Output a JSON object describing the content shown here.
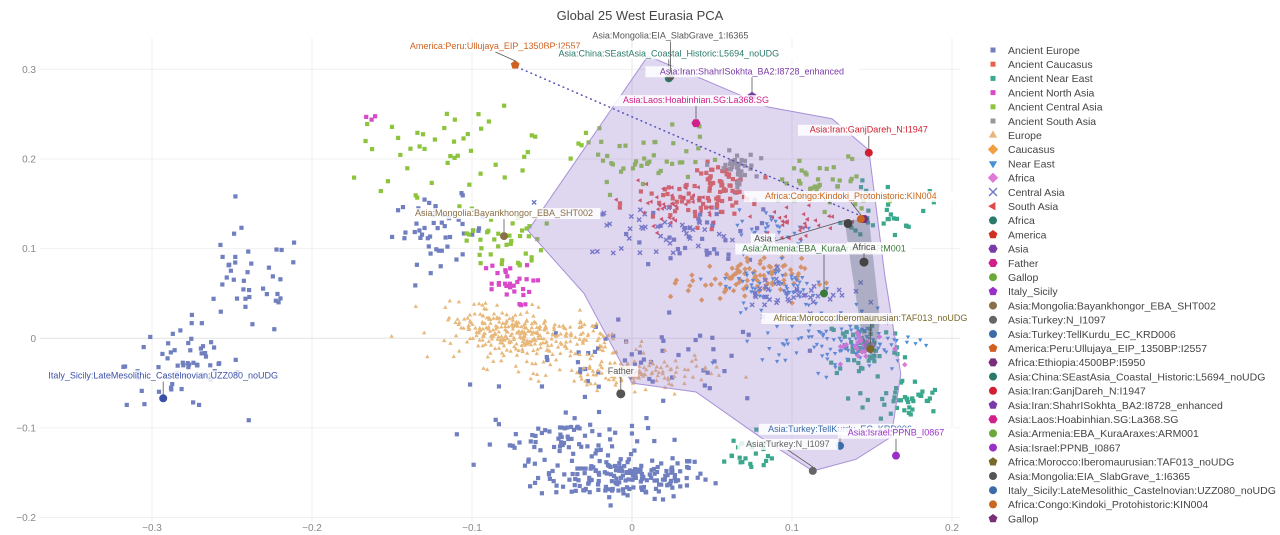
{
  "chart_data": {
    "type": "scatter",
    "title": "Global 25 West Eurasia PCA",
    "xlabel": "",
    "ylabel": "",
    "xlim": [
      -0.37,
      0.205
    ],
    "ylim": [
      -0.205,
      0.335
    ],
    "x_ticks": [
      -0.3,
      -0.2,
      -0.1,
      0,
      0.1,
      0.2
    ],
    "y_ticks": [
      -0.2,
      -0.1,
      0,
      0.1,
      0.2,
      0.3
    ],
    "x_tick_labels": [
      "−0.3",
      "−0.2",
      "−0.1",
      "0",
      "0.1",
      "0.2"
    ],
    "y_tick_labels": [
      "−0.2",
      "−0.1",
      "0",
      "0.1",
      "0.2",
      "0.3"
    ],
    "grid": true,
    "legend_position": "right",
    "sample_series": [
      {
        "name": "Ancient Europe",
        "symbol": "square",
        "color": "#6f7fbf",
        "clusters": [
          [
            -0.005,
            -0.155,
            0.045,
            0.02,
            180
          ],
          [
            -0.04,
            -0.11,
            0.04,
            0.02,
            70
          ],
          [
            -0.12,
            0.12,
            0.025,
            0.03,
            50
          ],
          [
            -0.28,
            -0.03,
            0.03,
            0.04,
            60
          ],
          [
            -0.24,
            0.06,
            0.03,
            0.05,
            40
          ],
          [
            0.01,
            -0.03,
            0.07,
            0.04,
            60
          ],
          [
            0.05,
            0.12,
            0.04,
            0.03,
            40
          ]
        ]
      },
      {
        "name": "Ancient Caucasus",
        "symbol": "square",
        "color": "#e8604c",
        "clusters": [
          [
            0.055,
            0.17,
            0.015,
            0.02,
            60
          ],
          [
            0.03,
            0.15,
            0.03,
            0.02,
            40
          ]
        ]
      },
      {
        "name": "Ancient Near East",
        "symbol": "square",
        "color": "#3aa88c",
        "clusters": [
          [
            0.145,
            -0.01,
            0.02,
            0.03,
            60
          ],
          [
            0.17,
            -0.07,
            0.02,
            0.02,
            40
          ],
          [
            0.16,
            0.15,
            0.02,
            0.03,
            30
          ],
          [
            0.07,
            -0.13,
            0.02,
            0.02,
            25
          ]
        ]
      },
      {
        "name": "Ancient North Asia",
        "symbol": "square",
        "color": "#d84ac9",
        "clusters": [
          [
            -0.08,
            0.06,
            0.015,
            0.02,
            30
          ],
          [
            -0.165,
            0.245,
            0.004,
            0.004,
            3
          ]
        ]
      },
      {
        "name": "Ancient Central Asia",
        "symbol": "square",
        "color": "#8cc43c",
        "clusters": [
          [
            -0.08,
            0.11,
            0.02,
            0.03,
            40
          ],
          [
            0.0,
            0.2,
            0.05,
            0.03,
            50
          ],
          [
            0.12,
            0.17,
            0.03,
            0.03,
            40
          ],
          [
            -0.12,
            0.21,
            0.04,
            0.04,
            40
          ]
        ]
      },
      {
        "name": "Ancient South Asia",
        "symbol": "square",
        "color": "#9a9a9a",
        "clusters": [
          [
            0.065,
            0.19,
            0.01,
            0.015,
            40
          ]
        ]
      },
      {
        "name": "Europe",
        "symbol": "triangle-up",
        "color": "#e8b87a",
        "clusters": [
          [
            -0.06,
            0.0,
            0.04,
            0.02,
            260
          ],
          [
            0.0,
            -0.04,
            0.04,
            0.015,
            140
          ],
          [
            -0.09,
            0.02,
            0.025,
            0.02,
            80
          ]
        ]
      },
      {
        "name": "Caucasus",
        "symbol": "diamond",
        "color": "#f0a040",
        "clusters": [
          [
            0.07,
            0.065,
            0.03,
            0.02,
            90
          ]
        ]
      },
      {
        "name": "Near East",
        "symbol": "triangle-down",
        "color": "#4a90d8",
        "clusters": [
          [
            0.13,
            0.0,
            0.04,
            0.03,
            110
          ],
          [
            0.09,
            0.06,
            0.03,
            0.02,
            60
          ],
          [
            0.09,
            0.12,
            0.02,
            0.02,
            30
          ]
        ]
      },
      {
        "name": "Africa",
        "symbol": "diamond",
        "color": "#e07ad8",
        "clusters": [
          [
            0.145,
            -0.01,
            0.015,
            0.015,
            25
          ]
        ]
      },
      {
        "name": "Central Asia",
        "symbol": "x",
        "color": "#6b78c8",
        "clusters": [
          [
            0.02,
            0.12,
            0.04,
            0.025,
            40
          ],
          [
            0.1,
            0.05,
            0.03,
            0.02,
            40
          ]
        ]
      },
      {
        "name": "South Asia",
        "symbol": "triangle-left",
        "color": "#e0484a",
        "clusters": [
          [
            0.025,
            0.15,
            0.025,
            0.02,
            40
          ],
          [
            0.1,
            0.13,
            0.03,
            0.02,
            30
          ]
        ]
      }
    ],
    "highlighted_samples": [
      {
        "label": "Asia:Mongolia:Bayankhongor_EBA_SHT002",
        "x": -0.08,
        "y": 0.114,
        "symbol": "circle",
        "color": "#8a7046",
        "label_dx": 0,
        "label_dy": -20
      },
      {
        "label": "Asia:Turkey:N_I1097",
        "x": 0.113,
        "y": -0.148,
        "symbol": "circle",
        "color": "#666666",
        "label_dx": -25,
        "label_dy": -24
      },
      {
        "label": "Asia:Turkey:TellKurdu_EC_KRD006",
        "x": 0.13,
        "y": -0.12,
        "symbol": "circle",
        "color": "#3a6ca8",
        "label_dx": 0,
        "label_dy": -14
      },
      {
        "label": "America:Peru:Ullujaya_EIP_1350BP:I2557",
        "x": -0.073,
        "y": 0.305,
        "symbol": "pentagon",
        "color": "#d06020",
        "label_dx": -20,
        "label_dy": -16
      },
      {
        "label": "Africa:Ethiopia:4500BP:I5950",
        "x": 0.145,
        "y": 0.133,
        "symbol": "hexagon",
        "color": "#7a2d7a",
        "label_dx": 0,
        "label_dy": 0
      },
      {
        "label": "Asia:China:SEastAsia_Coastal_Historic:L5694_noUDG",
        "x": 0.023,
        "y": 0.29,
        "symbol": "circle",
        "color": "#2a7a6a",
        "label_dx": 0,
        "label_dy": -22
      },
      {
        "label": "Asia:Iran:GanjDareh_N:I1947",
        "x": 0.148,
        "y": 0.207,
        "symbol": "circle",
        "color": "#d02030",
        "label_dx": 0,
        "label_dy": -20
      },
      {
        "label": "Asia:Iran:ShahrISokhta_BA2:I8728_enhanced",
        "x": 0.075,
        "y": 0.27,
        "symbol": "pentagon",
        "color": "#7a3aa8",
        "label_dx": 0,
        "label_dy": -22
      },
      {
        "label": "Asia:Laos:Hoabinhian.SG:La368.SG",
        "x": 0.04,
        "y": 0.24,
        "symbol": "hexagon",
        "color": "#d0208a",
        "label_dx": 0,
        "label_dy": -20
      },
      {
        "label": "Asia:Armenia:EBA_KuraAraxes:ARM001",
        "x": 0.12,
        "y": 0.05,
        "symbol": "circle",
        "color": "#3a7a3a",
        "label_dx": 0,
        "label_dy": -42
      },
      {
        "label": "Asia:Israel:PPNB_I0867",
        "x": 0.165,
        "y": -0.131,
        "symbol": "circle",
        "color": "#9a30c8",
        "label_dx": 0,
        "label_dy": -20
      },
      {
        "label": "Africa:Morocco:Iberomaurusian:TAF013_noUDG",
        "x": 0.149,
        "y": -0.012,
        "symbol": "circle",
        "color": "#7a6a2a",
        "label_dx": 0,
        "label_dy": -28
      },
      {
        "label": "Asia:Mongolia:EIA_SlabGrave_1:I6365",
        "x": 0.024,
        "y": 0.292,
        "symbol": "circle",
        "color": "#555555",
        "label_dx": 0,
        "label_dy": -38
      },
      {
        "label": "Italy_Sicily:LateMesolithic_Castelnovian:UZZ080_noUDG",
        "x": -0.293,
        "y": -0.067,
        "symbol": "circle",
        "color": "#3a50a8",
        "label_dx": 0,
        "label_dy": -20
      },
      {
        "label": "Africa:Congo:Kindoki_Protohistoric:KIN004",
        "x": 0.143,
        "y": 0.133,
        "symbol": "circle",
        "color": "#c86820",
        "label_dx": -10,
        "label_dy": -20
      }
    ],
    "centroids": [
      {
        "label": "Father",
        "x": -0.007,
        "y": -0.062,
        "symbol": "circle",
        "color": "#555555",
        "label_dx": 0,
        "label_dy": -20
      },
      {
        "label": "Asia",
        "x": 0.135,
        "y": 0.128,
        "symbol": "circle",
        "color": "#444444",
        "label_dx": -85,
        "label_dy": 18
      },
      {
        "label": "Africa",
        "x": 0.145,
        "y": 0.085,
        "symbol": "circle",
        "color": "#444444",
        "label_dx": 0,
        "label_dy": -12
      }
    ],
    "dotted_line": {
      "from": [
        -0.075,
        0.305
      ],
      "to": [
        0.145,
        0.135
      ],
      "color": "#5050b8"
    },
    "hull_polygon": {
      "points": [
        [
          -0.065,
          0.12
        ],
        [
          0.01,
          0.315
        ],
        [
          0.085,
          0.258
        ],
        [
          0.125,
          0.245
        ],
        [
          0.148,
          0.21
        ],
        [
          0.158,
          0.07
        ],
        [
          0.168,
          -0.04
        ],
        [
          0.162,
          -0.11
        ],
        [
          0.14,
          -0.135
        ],
        [
          0.113,
          -0.148
        ],
        [
          0.08,
          -0.11
        ],
        [
          0.04,
          -0.06
        ],
        [
          0.0,
          -0.05
        ],
        [
          -0.03,
          0.05
        ]
      ],
      "fill": "rgba(150,120,205,0.30)",
      "stroke": "#a890d8"
    },
    "africa_band": {
      "points": [
        [
          0.133,
          0.13
        ],
        [
          0.148,
          0.135
        ],
        [
          0.155,
          0.02
        ],
        [
          0.152,
          -0.02
        ],
        [
          0.145,
          -0.012
        ],
        [
          0.137,
          0.08
        ]
      ],
      "fill": "rgba(80,100,120,0.35)"
    },
    "legend_entries": [
      {
        "name": "Ancient Europe",
        "symbol": "square",
        "color": "#6f7fbf"
      },
      {
        "name": "Ancient Caucasus",
        "symbol": "square",
        "color": "#e8604c"
      },
      {
        "name": "Ancient Near East",
        "symbol": "square",
        "color": "#3aa88c"
      },
      {
        "name": "Ancient North Asia",
        "symbol": "square",
        "color": "#d84ac9"
      },
      {
        "name": "Ancient Central Asia",
        "symbol": "square",
        "color": "#8cc43c"
      },
      {
        "name": "Ancient South Asia",
        "symbol": "square",
        "color": "#9a9a9a"
      },
      {
        "name": "Europe",
        "symbol": "triangle-up",
        "color": "#e8b87a"
      },
      {
        "name": "Caucasus",
        "symbol": "diamond",
        "color": "#f0a040"
      },
      {
        "name": "Near East",
        "symbol": "triangle-down",
        "color": "#4a90d8"
      },
      {
        "name": "Africa",
        "symbol": "diamond",
        "color": "#e07ad8"
      },
      {
        "name": "Central Asia",
        "symbol": "x",
        "color": "#6b78c8"
      },
      {
        "name": "South Asia",
        "symbol": "triangle-left",
        "color": "#e0484a"
      },
      {
        "name": "Africa",
        "symbol": "circle",
        "color": "#2a7a6a"
      },
      {
        "name": "America",
        "symbol": "pentagon",
        "color": "#d03020"
      },
      {
        "name": "Asia",
        "symbol": "hexagon",
        "color": "#7a3aa8"
      },
      {
        "name": "Father",
        "symbol": "hexagon",
        "color": "#d0208a"
      },
      {
        "name": "Gallop",
        "symbol": "circle",
        "color": "#6aa83a"
      },
      {
        "name": "Italy_Sicily",
        "symbol": "pentagon",
        "color": "#9a30c8"
      },
      {
        "name": "Asia:Mongolia:Bayankhongor_EBA_SHT002",
        "symbol": "circle",
        "color": "#8a7046"
      },
      {
        "name": "Asia:Turkey:N_I1097",
        "symbol": "circle",
        "color": "#666666"
      },
      {
        "name": "Asia:Turkey:TellKurdu_EC_KRD006",
        "symbol": "circle",
        "color": "#3a6ca8"
      },
      {
        "name": "America:Peru:Ullujaya_EIP_1350BP:I2557",
        "symbol": "pentagon",
        "color": "#d06020"
      },
      {
        "name": "Africa:Ethiopia:4500BP:I5950",
        "symbol": "hexagon",
        "color": "#7a2d7a"
      },
      {
        "name": "Asia:China:SEastAsia_Coastal_Historic:L5694_noUDG",
        "symbol": "circle",
        "color": "#2a7a6a"
      },
      {
        "name": "Asia:Iran:GanjDareh_N:I1947",
        "symbol": "circle",
        "color": "#d02030"
      },
      {
        "name": "Asia:Iran:ShahrISokhta_BA2:I8728_enhanced",
        "symbol": "pentagon",
        "color": "#7a3aa8"
      },
      {
        "name": "Asia:Laos:Hoabinhian.SG:La368.SG",
        "symbol": "hexagon",
        "color": "#d0208a"
      },
      {
        "name": "Asia:Armenia:EBA_KuraAraxes:ARM001",
        "symbol": "circle",
        "color": "#6aa83a"
      },
      {
        "name": "Asia:Israel:PPNB_I0867",
        "symbol": "circle",
        "color": "#9a30c8"
      },
      {
        "name": "Africa:Morocco:Iberomaurusian:TAF013_noUDG",
        "symbol": "pentagon",
        "color": "#7a6a2a"
      },
      {
        "name": "Asia:Mongolia:EIA_SlabGrave_1:I6365",
        "symbol": "circle",
        "color": "#555555"
      },
      {
        "name": "Italy_Sicily:LateMesolithic_Castelnovian:UZZ080_noUDG",
        "symbol": "circle",
        "color": "#3a6ca8"
      },
      {
        "name": "Africa:Congo:Kindoki_Protohistoric:KIN004",
        "symbol": "circle",
        "color": "#c86820"
      },
      {
        "name": "Gallop",
        "symbol": "pentagon",
        "color": "#7a2d7a"
      }
    ]
  }
}
